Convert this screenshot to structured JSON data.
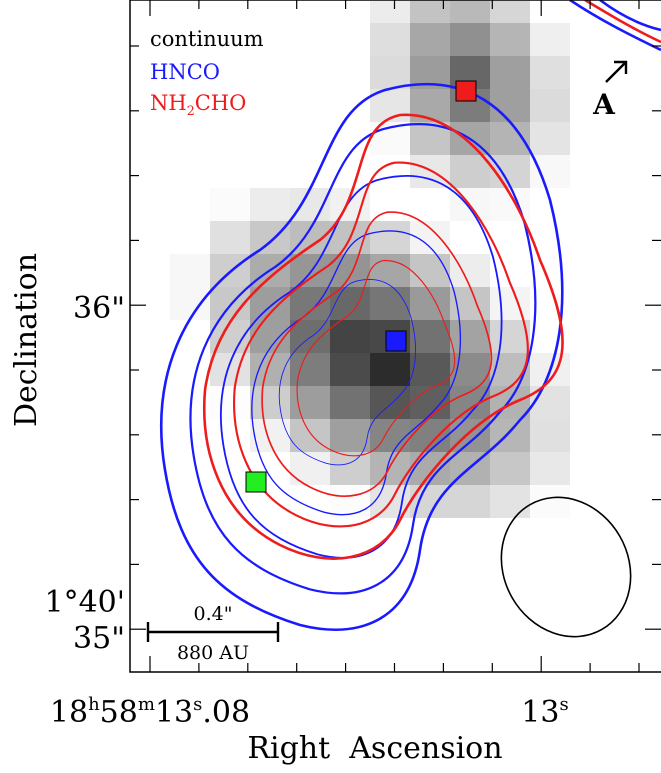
{
  "legend": {
    "continuum": "continuum",
    "hnco": "HNCO",
    "nh2cho": [
      "NH",
      "2",
      "CHO"
    ]
  },
  "label_a": "A",
  "scale_bar": {
    "angle": "0.4\"",
    "length": "880 AU"
  },
  "axes": {
    "x_label": "Right  Ascension",
    "y_label": "Declination",
    "x_ticks": [
      [
        "18",
        "h",
        "58",
        "m",
        "13",
        "s",
        ".08"
      ],
      [
        "13",
        "s"
      ]
    ],
    "y_ticks": [
      [
        "36\""
      ],
      [
        "1°40'",
        "35\""
      ]
    ]
  }
}
